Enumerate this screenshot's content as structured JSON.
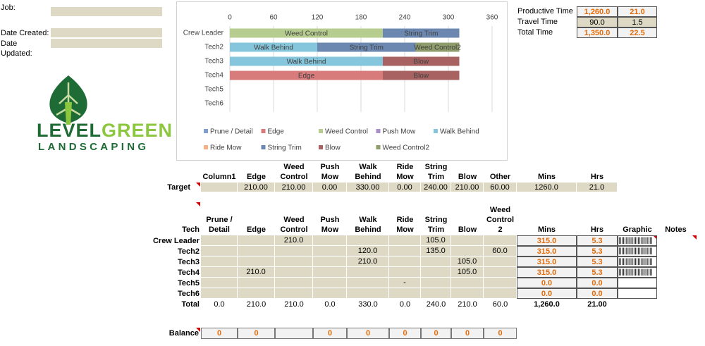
{
  "job_fields": [
    {
      "label": "Job:"
    },
    {
      "label": "Date Created:"
    },
    {
      "label": "Date Updated:"
    }
  ],
  "logo": {
    "word1": "LEVEL",
    "word2": "GREEN",
    "line2": "LANDSCAPING"
  },
  "time_summary": {
    "rows": [
      [
        "Productive Time",
        "1,260.0",
        "21.0"
      ],
      [
        "Travel Time",
        "90.0",
        "1.5"
      ],
      [
        "Total Time",
        "1,350.0",
        "22.5"
      ]
    ]
  },
  "chart_data": {
    "type": "stacked_barh",
    "categories": [
      "Crew Leader",
      "Tech2",
      "Tech3",
      "Tech4",
      "Tech5",
      "Tech6"
    ],
    "series": [
      {
        "name": "Prune / Detail",
        "color": "#7f9fd0",
        "values": [
          null,
          null,
          null,
          null,
          null,
          null
        ]
      },
      {
        "name": "Edge",
        "color": "#d87b7b",
        "values": [
          null,
          null,
          null,
          210,
          null,
          null
        ]
      },
      {
        "name": "Weed Control",
        "color": "#b6cd8f",
        "values": [
          210,
          null,
          null,
          null,
          null,
          null
        ]
      },
      {
        "name": "Push Mow",
        "color": "#a88fc9",
        "values": [
          null,
          null,
          null,
          null,
          null,
          null
        ]
      },
      {
        "name": "Walk Behind",
        "color": "#86c6dc",
        "values": [
          null,
          120,
          210,
          null,
          null,
          null
        ]
      },
      {
        "name": "Ride Mow",
        "color": "#f5b183",
        "values": [
          null,
          null,
          null,
          null,
          null,
          null
        ]
      },
      {
        "name": "String Trim",
        "color": "#6c88b1",
        "values": [
          105,
          135,
          null,
          null,
          null,
          null
        ]
      },
      {
        "name": "Blow",
        "color": "#a96262",
        "values": [
          null,
          null,
          105,
          105,
          null,
          null
        ]
      },
      {
        "name": "Weed Control2",
        "color": "#8f9c6b",
        "values": [
          null,
          60,
          null,
          null,
          null,
          null
        ]
      }
    ],
    "xlim": [
      0,
      360
    ],
    "xticks": [
      0,
      60,
      120,
      180,
      240,
      300,
      360
    ],
    "grid": true,
    "legend": "bottom"
  },
  "target_table": {
    "columns": [
      "Column1",
      "Edge",
      "Weed Control",
      "Push Mow",
      "Walk Behind",
      "Ride Mow",
      "String Trim",
      "Blow",
      "Other",
      "Mins",
      "Hrs"
    ],
    "row_label": "Target",
    "values": [
      null,
      "210.00",
      "210.00",
      "0.00",
      "330.00",
      "0.00",
      "240.00",
      "210.00",
      "60.00",
      "1260.0",
      "21.0"
    ]
  },
  "tech_table": {
    "columns": [
      "Tech",
      "Prune / Detail",
      "Edge",
      "Weed Control",
      "Push Mow",
      "Walk Behind",
      "Ride Mow",
      "String Trim",
      "Blow",
      "Weed Control 2",
      "Mins",
      "Hrs",
      "Graphic",
      "Notes"
    ],
    "rows": [
      {
        "label": "Crew Leader",
        "cells": [
          null,
          null,
          "210.0",
          null,
          null,
          null,
          "105.0",
          null,
          null
        ],
        "mins": "315.0",
        "hrs": "5.3",
        "graphic": "|||||||||||||||||||||||"
      },
      {
        "label": "Tech2",
        "cells": [
          null,
          null,
          null,
          null,
          "120.0",
          null,
          "135.0",
          null,
          "60.0"
        ],
        "mins": "315.0",
        "hrs": "5.3",
        "graphic": "|||||||||||||||||||||||"
      },
      {
        "label": "Tech3",
        "cells": [
          null,
          null,
          null,
          null,
          "210.0",
          null,
          null,
          "105.0",
          null
        ],
        "mins": "315.0",
        "hrs": "5.3",
        "graphic": "|||||||||||||||||||||||"
      },
      {
        "label": "Tech4",
        "cells": [
          null,
          "210.0",
          null,
          null,
          null,
          null,
          null,
          "105.0",
          null
        ],
        "mins": "315.0",
        "hrs": "5.3",
        "graphic": "|||||||||||||||||||||||"
      },
      {
        "label": "Tech5",
        "cells": [
          null,
          null,
          null,
          null,
          null,
          "-",
          null,
          null,
          null
        ],
        "mins": "0.0",
        "hrs": "0.0",
        "graphic": null
      },
      {
        "label": "Tech6",
        "cells": [
          null,
          null,
          null,
          null,
          null,
          null,
          null,
          null,
          null
        ],
        "mins": "0.0",
        "hrs": "0.0",
        "graphic": null
      }
    ],
    "total": {
      "label": "Total",
      "cells": [
        "0.0",
        "210.0",
        "210.0",
        "0.0",
        "330.0",
        "0.0",
        "240.0",
        "210.0",
        "60.0"
      ],
      "mins": "1,260.0",
      "hrs": "21.00"
    }
  },
  "balance": {
    "label": "Balance",
    "values": [
      0,
      0,
      null,
      0,
      0,
      0,
      0,
      0,
      0
    ]
  }
}
